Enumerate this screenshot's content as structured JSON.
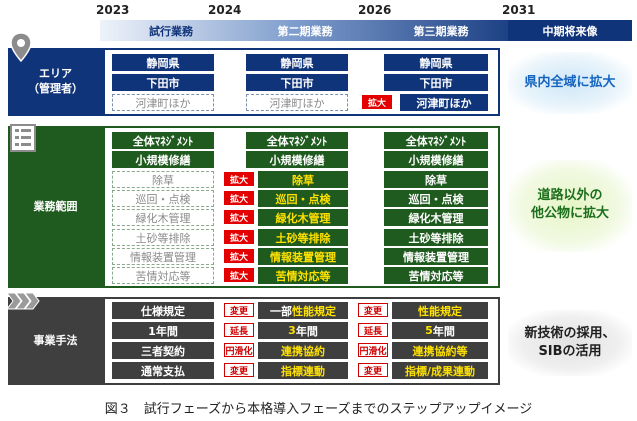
{
  "years": [
    "2023",
    "2024",
    "2026",
    "2031"
  ],
  "phases": [
    "試行業務",
    "第二期業務",
    "第三期業務",
    "中期将来像"
  ],
  "sections": [
    {
      "label_lines": [
        "エリア",
        "（管理者）"
      ],
      "icon": "location-pin-icon",
      "result_lines": [
        "県内全域に拡大"
      ],
      "result_color": "#1565c0",
      "glow": "#cfe7f7"
    },
    {
      "label_lines": [
        "業務範囲"
      ],
      "icon": "checklist-icon",
      "result_lines": [
        "道路以外の",
        "他公物に拡大"
      ],
      "result_color": "#1b6e1b",
      "glow": "#e6f5c6"
    },
    {
      "label_lines": [
        "事業手法"
      ],
      "icon": "step-arrows-icon",
      "result_lines": [
        "新技術の採用、",
        "SIBの活用"
      ],
      "result_color": "#1e1e1e",
      "glow": "#e2e2e2"
    }
  ],
  "area": {
    "p1": [
      "静岡県",
      "下田市",
      "河津町ほか"
    ],
    "p2": [
      "静岡県",
      "下田市",
      "河津町ほか"
    ],
    "p3": [
      "静岡県",
      "下田市",
      "河津町ほか"
    ],
    "p3_tag": "拡大"
  },
  "scope": {
    "p1": [
      "全体ﾏﾈｼﾞﾒﾝﾄ",
      "小規模修繕",
      "除草",
      "巡回・点検",
      "緑化木管理",
      "土砂等排除",
      "情報装置管理",
      "苦情対応等"
    ],
    "p2": [
      "全体ﾏﾈｼﾞﾒﾝﾄ",
      "小規模修繕",
      "除草",
      "巡回・点検",
      "緑化木管理",
      "土砂等排除",
      "情報装置管理",
      "苦情対応等"
    ],
    "p3": [
      "全体ﾏﾈｼﾞﾒﾝﾄ",
      "小規模修繕",
      "除草",
      "巡回・点検",
      "緑化木管理",
      "土砂等排除",
      "情報装置管理",
      "苦情対応等"
    ],
    "p2_tag": "拡大"
  },
  "method": {
    "p1": [
      "仕様規定",
      "1年間",
      "三者契約",
      "通常支払"
    ],
    "p2_tags": [
      "変更",
      "延長",
      "円滑化",
      "変更"
    ],
    "p2": [
      {
        "pre": "一部",
        "hl": "性能規定",
        "post": ""
      },
      {
        "pre": "",
        "hl": "3",
        "post": "年間"
      },
      {
        "pre": "",
        "hl": "連携協約",
        "post": ""
      },
      {
        "pre": "",
        "hl": "指標連動",
        "post": ""
      }
    ],
    "p3_tags": [
      "変更",
      "延長",
      "円滑化",
      "変更"
    ],
    "p3": [
      {
        "pre": "",
        "hl": "性能規定",
        "post": ""
      },
      {
        "pre": "",
        "hl": "5",
        "post": "年間"
      },
      {
        "pre": "",
        "hl": "連携協約等",
        "post": ""
      },
      {
        "pre": "",
        "hl": "指標/成果連動",
        "post": ""
      }
    ]
  },
  "caption": "図３　試行フェーズから本格導入フェーズまでのステップアップイメージ",
  "colors": {
    "navy": "#10347a",
    "green": "#1f5a1f",
    "dark": "#3f3f3f",
    "red": "#e40000",
    "yellow": "#ffe100"
  }
}
